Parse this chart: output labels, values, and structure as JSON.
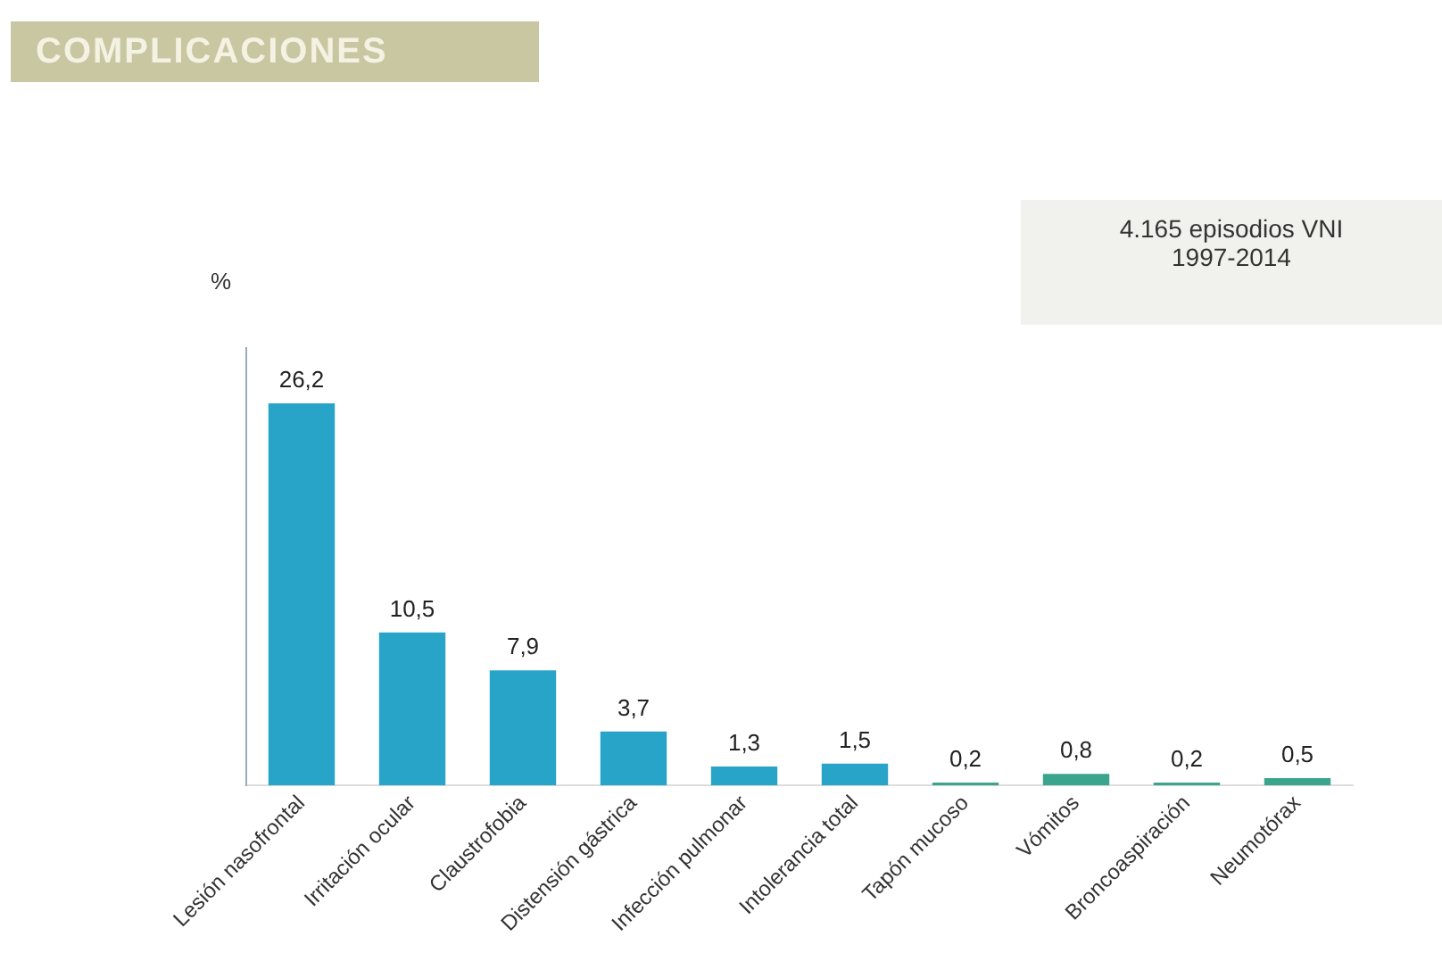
{
  "chart_data": {
    "type": "bar",
    "title": "COMPLICACIONES",
    "ylabel": "%",
    "annotations": [
      "4.165 episodios VNI\n1997-2014"
    ],
    "categories": [
      "Lesión nasofrontal",
      "Irritación ocular",
      "Claustrofobia",
      "Distensión gástrica",
      "Infección pulmonar",
      "Intolerancia total",
      "Tapón mucoso",
      "Vómitos",
      "Broncoaspiración",
      "Neumotórax"
    ],
    "values": [
      26.2,
      10.5,
      7.9,
      3.7,
      1.3,
      1.5,
      0.2,
      0.8,
      0.2,
      0.5
    ],
    "colors": [
      "#29a4c9",
      "#29a4c9",
      "#29a4c9",
      "#29a4c9",
      "#29a4c9",
      "#29a4c9",
      "#3aa58c",
      "#3aa58c",
      "#3aa58c",
      "#3aa58c"
    ],
    "value_labels": [
      "26,2",
      "10,5",
      "7,9",
      "3,7",
      "1,3",
      "1,5",
      "0,2",
      "0,8",
      "0,2",
      "0,5"
    ],
    "grid": false,
    "legend": false,
    "tick_labels": "x"
  }
}
